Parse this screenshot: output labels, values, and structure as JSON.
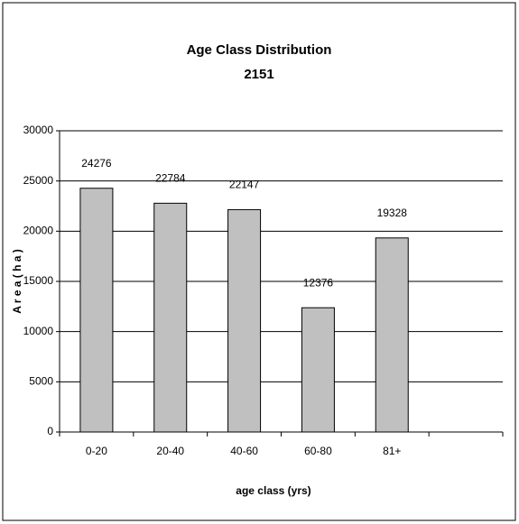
{
  "chart_data": {
    "type": "bar",
    "title": "Age Class Distribution",
    "subtitle": "2151",
    "x_label": "age class (yrs)",
    "y_label": "A r e a  ( h a )",
    "categories": [
      "0-20",
      "20-40",
      "40-60",
      "60-80",
      "81+",
      null
    ],
    "values": [
      24276,
      22784,
      22147,
      12376,
      19328,
      null
    ],
    "color": "#c0c0c0",
    "ylim": [
      0,
      30000
    ],
    "yticks": [
      0,
      5000,
      10000,
      15000,
      20000,
      25000,
      30000
    ],
    "grid": true
  }
}
